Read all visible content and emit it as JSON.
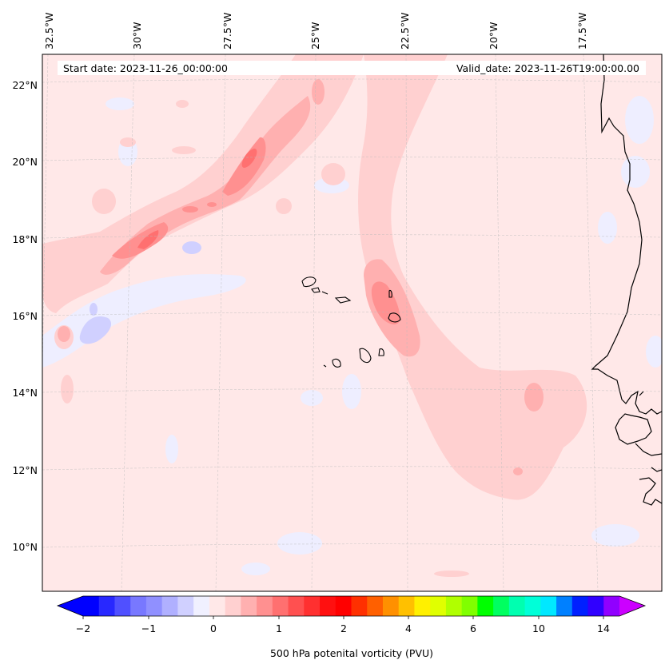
{
  "header": {
    "start_date": "Start date: 2023-11-26_00:00:00",
    "valid_date": "Valid_date: 2023-11-26T19:00:00.00"
  },
  "longitude_labels": [
    "32.5°W",
    "30°W",
    "27.5°W",
    "25°W",
    "22.5°W",
    "20°W",
    "17.5°W"
  ],
  "latitude_labels": [
    "22°N",
    "20°N",
    "18°N",
    "16°N",
    "14°N",
    "12°N",
    "10°N"
  ],
  "colorbar": {
    "title": "500 hPa potenital vorticity (PVU)",
    "tick_labels": [
      "−2",
      "−1",
      "0",
      "1",
      "2",
      "4",
      "6",
      "10",
      "14"
    ],
    "colors": [
      "#0000ff",
      "#2828ff",
      "#5050ff",
      "#7878ff",
      "#9090ff",
      "#b0b0ff",
      "#d0d0ff",
      "#f0f0ff",
      "#ffe8e8",
      "#ffd0d0",
      "#ffb0b0",
      "#ff9090",
      "#ff7070",
      "#ff5050",
      "#ff3030",
      "#ff1010",
      "#ff0000",
      "#ff3000",
      "#ff6000",
      "#ff9000",
      "#ffc000",
      "#fff000",
      "#e0ff00",
      "#b0ff00",
      "#80ff00",
      "#00ff00",
      "#00ff60",
      "#00ffb0",
      "#00ffd8",
      "#00e8ff",
      "#0080ff",
      "#0020ff",
      "#3000ff",
      "#9000ff"
    ],
    "min_extend_color": "#0000ff",
    "max_extend_color": "#cc00ff"
  },
  "map": {
    "background_color": "#ffe8e8",
    "coastline_color": "#000000"
  }
}
